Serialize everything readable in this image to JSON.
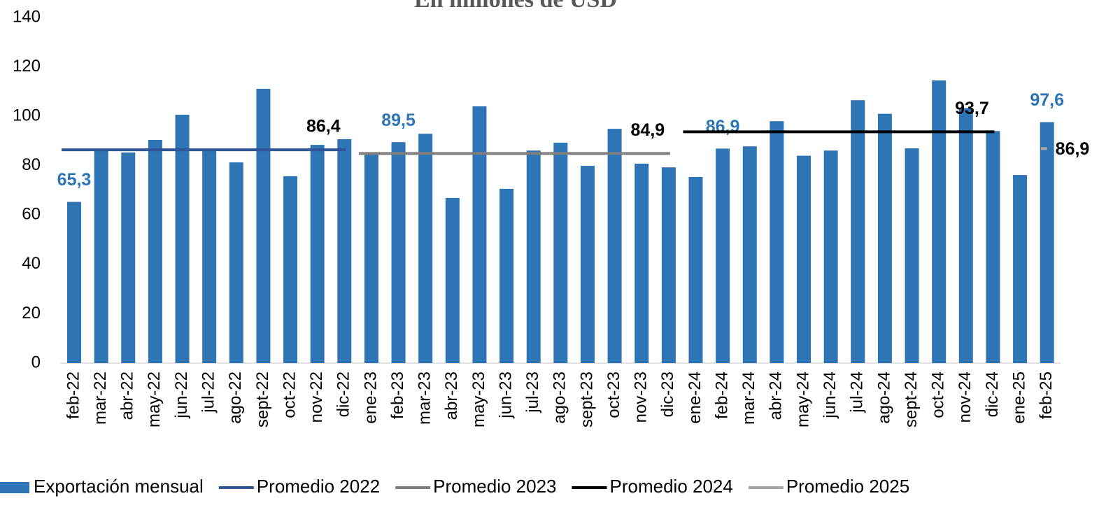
{
  "chart_data": {
    "type": "bar",
    "title": "En millones de USD",
    "categories": [
      "feb-22",
      "mar-22",
      "abr-22",
      "may-22",
      "jun-22",
      "jul-22",
      "ago-22",
      "sept-22",
      "oct-22",
      "nov-22",
      "dic-22",
      "ene-23",
      "feb-23",
      "mar-23",
      "abr-23",
      "may-23",
      "jun-23",
      "jul-23",
      "ago-23",
      "sept-23",
      "oct-23",
      "nov-23",
      "dic-23",
      "ene-24",
      "feb-24",
      "mar-24",
      "abr-24",
      "may-24",
      "jun-24",
      "jul-24",
      "ago-24",
      "sept-24",
      "oct-24",
      "nov-24",
      "dic-24",
      "ene-25",
      "feb-25"
    ],
    "series": [
      {
        "name": "Exportación mensual",
        "type": "bar",
        "color": "#2e75b6",
        "values": [
          65.3,
          86.5,
          85.3,
          90.4,
          100.6,
          86.7,
          81.3,
          111.1,
          75.7,
          88.4,
          90.7,
          85.3,
          89.5,
          92.9,
          66.9,
          104,
          70.6,
          86.1,
          89.3,
          79.9,
          94.9,
          80.8,
          79.3,
          75.4,
          86.9,
          87.8,
          98,
          84,
          86.1,
          106.5,
          101,
          87,
          114.5,
          103.3,
          94,
          76.2,
          97.6
        ],
        "value_labels": [
          "65,3",
          null,
          null,
          null,
          null,
          null,
          null,
          null,
          null,
          null,
          null,
          null,
          "89,5",
          null,
          null,
          null,
          null,
          null,
          null,
          null,
          null,
          null,
          null,
          null,
          "86,9",
          null,
          null,
          null,
          null,
          null,
          null,
          null,
          null,
          null,
          null,
          null,
          "97,6"
        ]
      },
      {
        "name": "Promedio 2022",
        "type": "line",
        "color": "#2f5597",
        "values": [
          86.4,
          86.4,
          86.4,
          86.4,
          86.4,
          86.4,
          86.4,
          86.4,
          86.4,
          86.4,
          86.4,
          null,
          null,
          null,
          null,
          null,
          null,
          null,
          null,
          null,
          null,
          null,
          null,
          null,
          null,
          null,
          null,
          null,
          null,
          null,
          null,
          null,
          null,
          null,
          null,
          null,
          null
        ],
        "value_labels": [
          null,
          null,
          null,
          null,
          null,
          null,
          null,
          null,
          null,
          null,
          "86,4",
          null,
          null,
          null,
          null,
          null,
          null,
          null,
          null,
          null,
          null,
          null,
          null,
          null,
          null,
          null,
          null,
          null,
          null,
          null,
          null,
          null,
          null,
          null,
          null,
          null,
          null
        ]
      },
      {
        "name": "Promedio 2023",
        "type": "line",
        "color": "#7f7f7f",
        "values": [
          null,
          null,
          null,
          null,
          null,
          null,
          null,
          null,
          null,
          null,
          null,
          84.9,
          84.9,
          84.9,
          84.9,
          84.9,
          84.9,
          84.9,
          84.9,
          84.9,
          84.9,
          84.9,
          84.9,
          null,
          null,
          null,
          null,
          null,
          null,
          null,
          null,
          null,
          null,
          null,
          null,
          null,
          null
        ],
        "value_labels": [
          null,
          null,
          null,
          null,
          null,
          null,
          null,
          null,
          null,
          null,
          null,
          null,
          null,
          null,
          null,
          null,
          null,
          null,
          null,
          null,
          null,
          null,
          "84,9",
          null,
          null,
          null,
          null,
          null,
          null,
          null,
          null,
          null,
          null,
          null,
          null,
          null,
          null
        ]
      },
      {
        "name": "Promedio 2024",
        "type": "line",
        "color": "#000000",
        "values": [
          null,
          null,
          null,
          null,
          null,
          null,
          null,
          null,
          null,
          null,
          null,
          null,
          null,
          null,
          null,
          null,
          null,
          null,
          null,
          null,
          null,
          null,
          null,
          93.7,
          93.7,
          93.7,
          93.7,
          93.7,
          93.7,
          93.7,
          93.7,
          93.7,
          93.7,
          93.7,
          93.7,
          null,
          null
        ],
        "value_labels": [
          null,
          null,
          null,
          null,
          null,
          null,
          null,
          null,
          null,
          null,
          null,
          null,
          null,
          null,
          null,
          null,
          null,
          null,
          null,
          null,
          null,
          null,
          null,
          null,
          null,
          null,
          null,
          null,
          null,
          null,
          null,
          null,
          null,
          null,
          "93,7",
          null,
          null
        ]
      },
      {
        "name": "Promedio 2025",
        "type": "line",
        "color": "#a6a6a6",
        "values": [
          null,
          null,
          null,
          null,
          null,
          null,
          null,
          null,
          null,
          null,
          null,
          null,
          null,
          null,
          null,
          null,
          null,
          null,
          null,
          null,
          null,
          null,
          null,
          null,
          null,
          null,
          null,
          null,
          null,
          null,
          null,
          null,
          null,
          null,
          null,
          86.9,
          86.9
        ],
        "value_labels": [
          null,
          null,
          null,
          null,
          null,
          null,
          null,
          null,
          null,
          null,
          null,
          null,
          null,
          null,
          null,
          null,
          null,
          null,
          null,
          null,
          null,
          null,
          null,
          null,
          null,
          null,
          null,
          null,
          null,
          null,
          null,
          null,
          null,
          null,
          null,
          null,
          "86,9"
        ]
      }
    ],
    "ylim": [
      0,
      140
    ],
    "yticks": [
      0,
      20,
      40,
      60,
      80,
      100,
      120,
      140
    ],
    "grid": false,
    "legend": "bottom"
  }
}
